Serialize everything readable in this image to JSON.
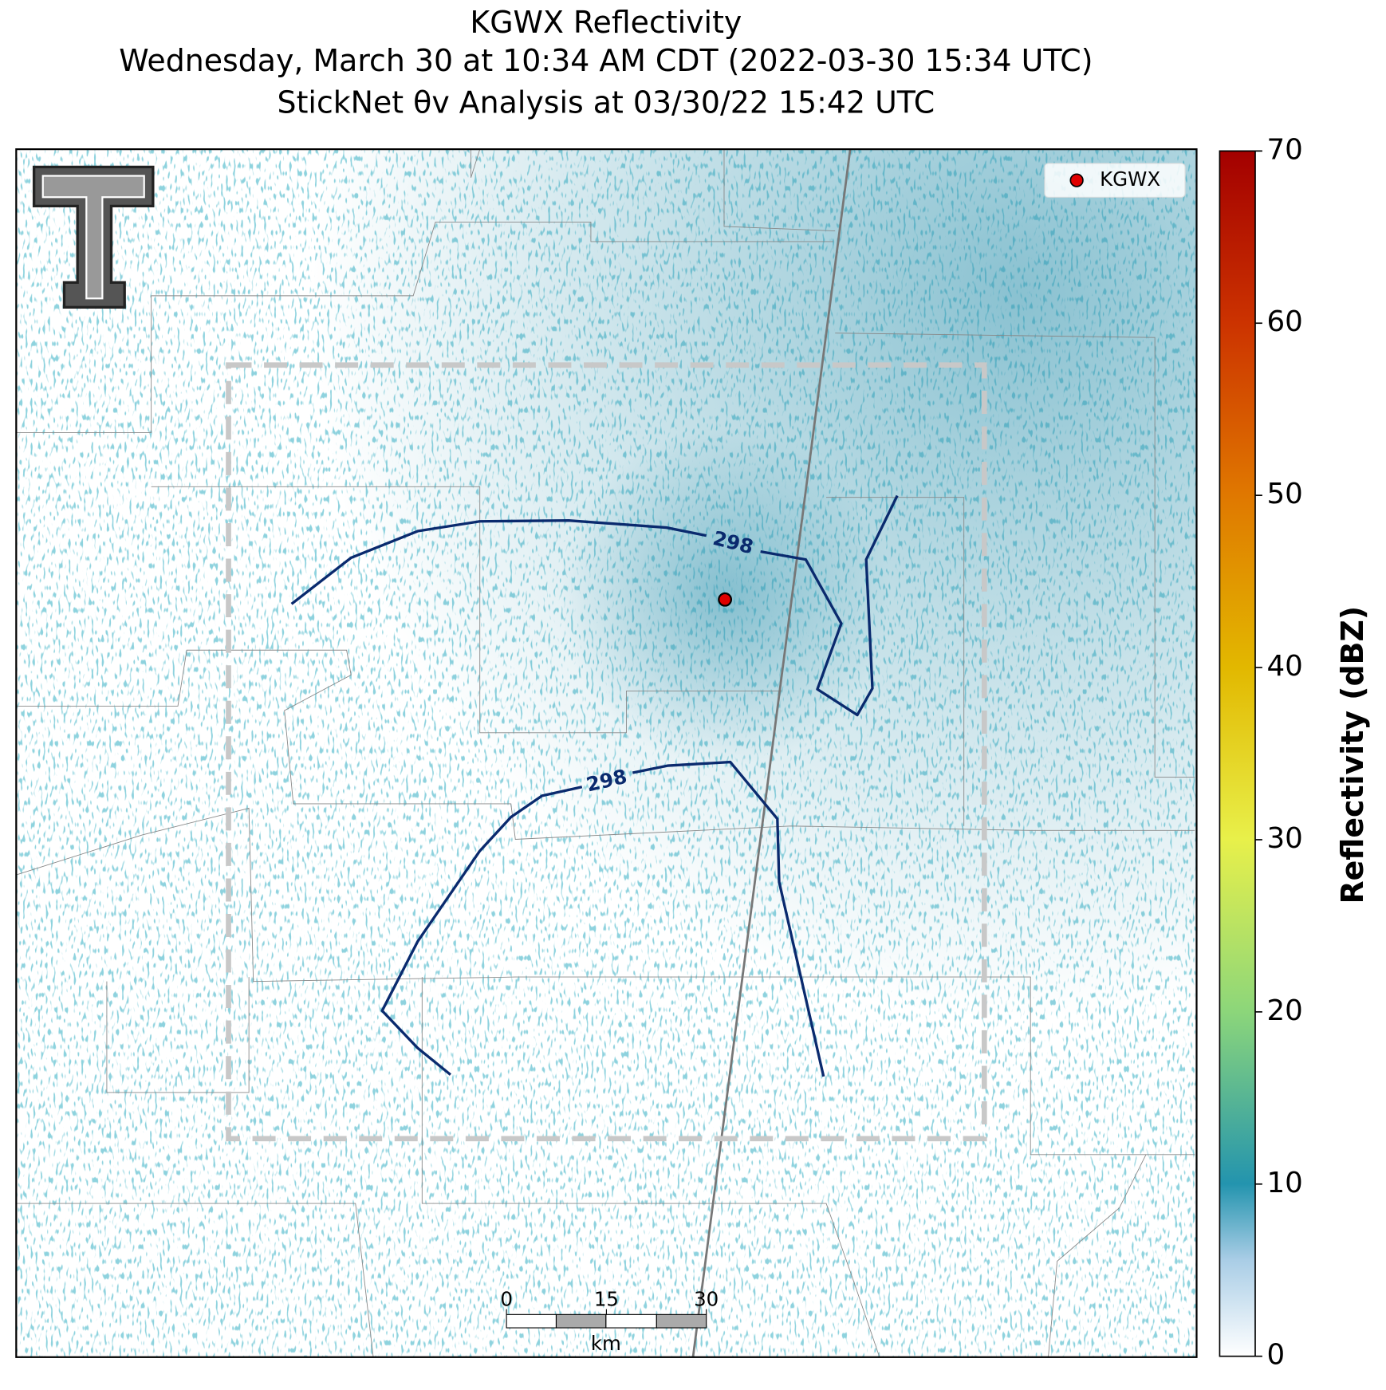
{
  "title": [
    "KGWX Reflectivity",
    "Wednesday, March 30 at 10:34 AM CDT (2022-03-30 15:34 UTC)",
    "StickNet θv Analysis at 03/30/22 15:42 UTC"
  ],
  "legend": {
    "label": "KGWX"
  },
  "contours": [
    {
      "label": "298"
    },
    {
      "label": "298"
    }
  ],
  "colorbar": {
    "label": "Reflectivity (dBZ)",
    "lim": [
      0,
      70
    ],
    "ticks": [
      0,
      10,
      20,
      30,
      40,
      50,
      60,
      70
    ]
  },
  "scale_bar": {
    "ticks": [
      0,
      15,
      30
    ],
    "unit": "km"
  }
}
